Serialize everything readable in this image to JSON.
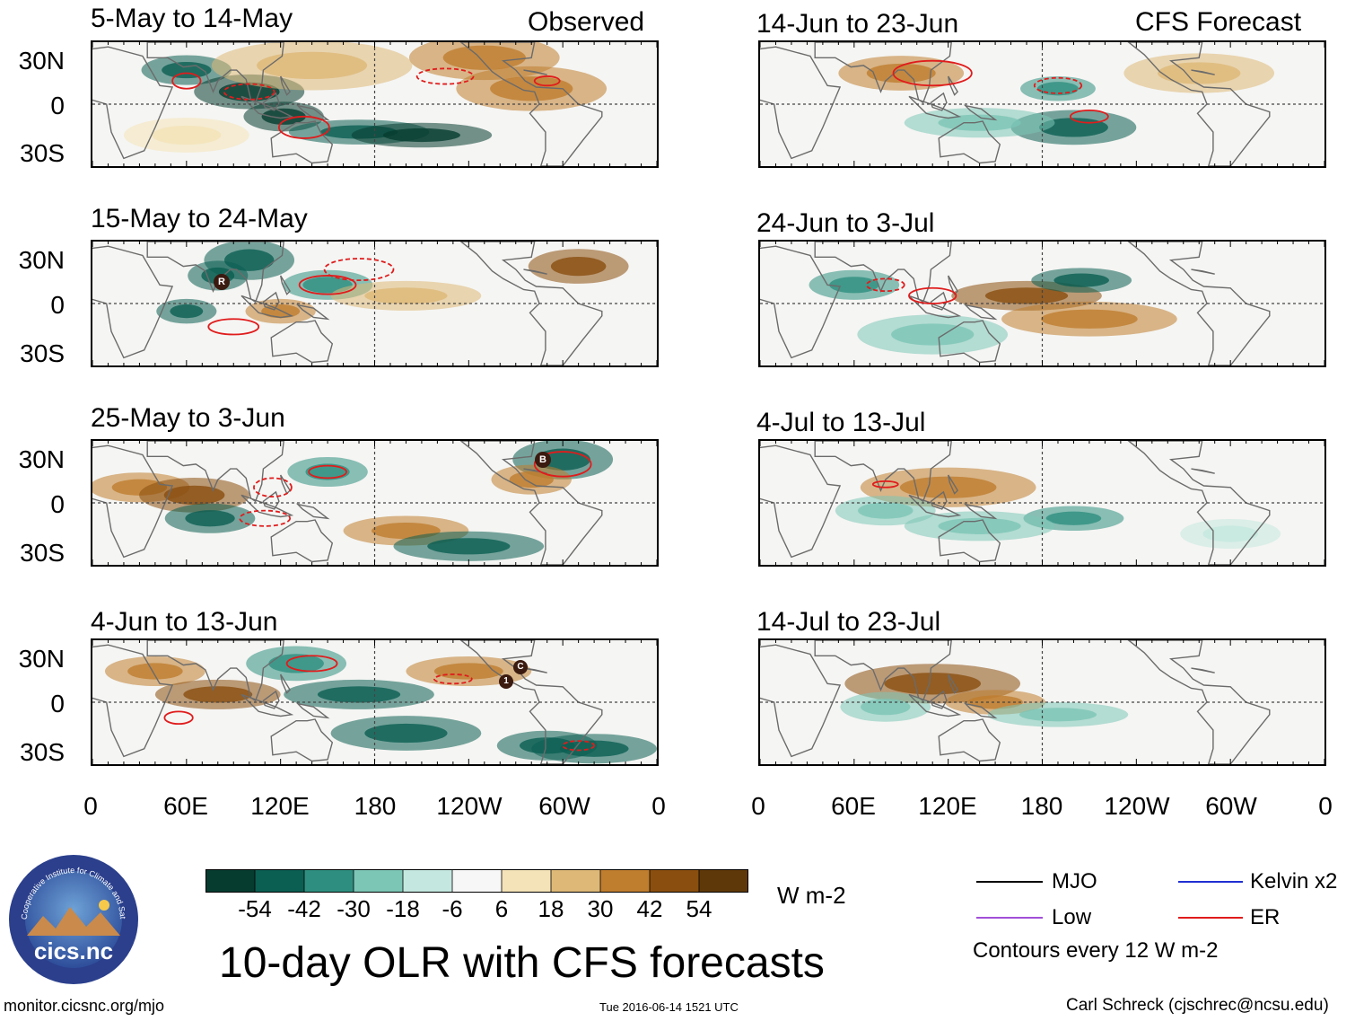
{
  "observed_label": "Observed",
  "forecast_label": "CFS Forecast",
  "latitude_labels": [
    "30N",
    "0",
    "30S"
  ],
  "longitude_labels": [
    "0",
    "60E",
    "120E",
    "180",
    "120W",
    "60W",
    "0"
  ],
  "observed_panels": [
    {
      "title": "5-May to 14-May"
    },
    {
      "title": "15-May to 24-May"
    },
    {
      "title": "25-May to 3-Jun"
    },
    {
      "title": "4-Jun to 13-Jun"
    }
  ],
  "forecast_panels": [
    {
      "title": "14-Jun to 23-Jun"
    },
    {
      "title": "24-Jun to 3-Jul"
    },
    {
      "title": "4-Jul to 13-Jul"
    },
    {
      "title": "14-Jul to 23-Jul"
    }
  ],
  "markers": {
    "obs2_r": "R",
    "obs3_b": "B",
    "obs4_1": "1",
    "obs4_c": "C"
  },
  "colorbar": {
    "labels": [
      "-54",
      "-42",
      "-30",
      "-18",
      "-6",
      "6",
      "18",
      "30",
      "42",
      "54"
    ],
    "colors": [
      "#063c30",
      "#0b5e52",
      "#2e8f80",
      "#7cc6b6",
      "#c4e8df",
      "#f7f7f7",
      "#f4e3b8",
      "#ddb877",
      "#bf7d2e",
      "#8a4e0f",
      "#5e3808"
    ],
    "units": "W m-2"
  },
  "main_title": "10-day OLR with CFS forecasts",
  "legend": {
    "items": [
      {
        "label": "MJO",
        "color": "#000000"
      },
      {
        "label": "Kelvin x2",
        "color": "#1f2fd1"
      },
      {
        "label": "Low",
        "color": "#a24fd8"
      },
      {
        "label": "ER",
        "color": "#e01c1c"
      }
    ],
    "note": "Contours every 12 W m-2"
  },
  "logo": {
    "text": "cics.nc",
    "ring_text": "Cooperative Institute for Climate and Satellites"
  },
  "footer": {
    "website": "monitor.cicsnc.org/mjo",
    "timestamp": "Tue 2016-06-14 1521 UTC",
    "credit": "Carl Schreck (cjschrec@ncsu.edu)"
  }
}
